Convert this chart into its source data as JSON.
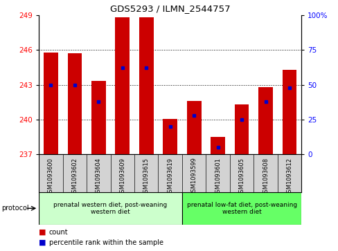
{
  "title": "GDS5293 / ILMN_2544757",
  "samples": [
    "GSM1093600",
    "GSM1093602",
    "GSM1093604",
    "GSM1093609",
    "GSM1093615",
    "GSM1093619",
    "GSM1093599",
    "GSM1093601",
    "GSM1093605",
    "GSM1093608",
    "GSM1093612"
  ],
  "count_values": [
    245.8,
    245.7,
    243.3,
    248.8,
    248.8,
    240.05,
    241.6,
    238.5,
    241.3,
    242.8,
    244.3
  ],
  "percentile_values": [
    50,
    50,
    38,
    62,
    62,
    20,
    28,
    5,
    25,
    38,
    48
  ],
  "base_value": 237,
  "ylim_left": [
    237,
    249
  ],
  "ylim_right": [
    0,
    100
  ],
  "yticks_left": [
    237,
    240,
    243,
    246,
    249
  ],
  "yticks_right": [
    0,
    25,
    50,
    75,
    100
  ],
  "ytick_right_labels": [
    "0",
    "25",
    "50",
    "75",
    "100%"
  ],
  "bar_color": "#cc0000",
  "dot_color": "#0000cc",
  "bar_width": 0.6,
  "group1_label": "prenatal western diet, post-weaning\nwestern diet",
  "group2_label": "prenatal low-fat diet, post-weaning\nwestern diet",
  "group1_count": 6,
  "group2_count": 5,
  "group1_color": "#ccffcc",
  "group2_color": "#66ff66",
  "protocol_label": "protocol",
  "legend_count_label": "count",
  "legend_percentile_label": "percentile rank within the sample",
  "background_color": "#ffffff",
  "plot_bg_color": "#ffffff",
  "tick_area_color": "#d3d3d3",
  "grid_color": "#000000",
  "border_color": "#000000"
}
